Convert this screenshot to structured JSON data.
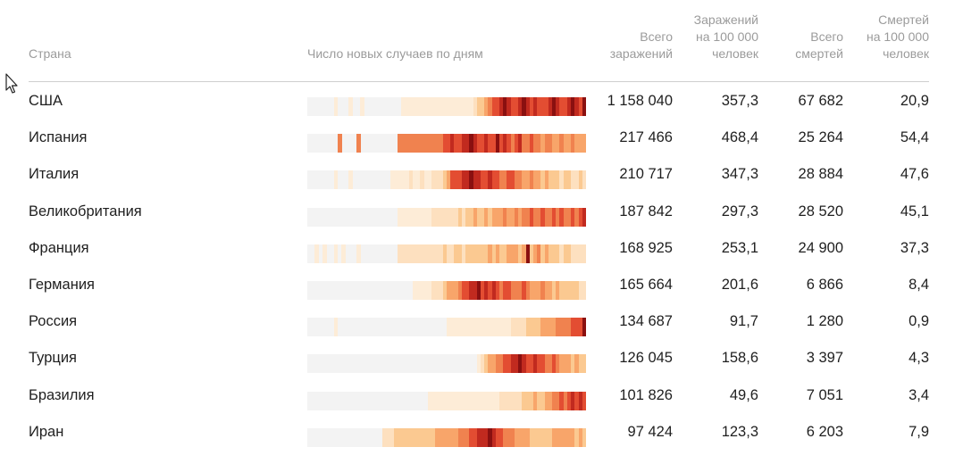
{
  "headers": {
    "country": "Страна",
    "spark": "Число новых случаев по дням",
    "total_cases": "Всего\nзаражений",
    "cases_100k": "Заражений\nна 100 000\nчеловек",
    "total_deaths": "Всего\nсмертей",
    "deaths_100k": "Смертей\nна 100 000\nчеловек"
  },
  "colors": {
    "empty": "#f3f3f3",
    "palette": [
      "#f3f3f3",
      "#fdecd7",
      "#fde0bf",
      "#fbc991",
      "#f8a56a",
      "#f0824f",
      "#e34d32",
      "#c12a1f",
      "#8a1010"
    ]
  },
  "rows": [
    {
      "country": "США",
      "total_cases": "1 158 040",
      "cases_100k": "357,3",
      "total_deaths": "67 682",
      "deaths_100k": "20,9",
      "spark_levels": [
        0,
        0,
        0,
        0,
        0,
        0,
        0,
        1,
        0,
        0,
        0,
        1,
        0,
        0,
        1,
        0,
        0,
        0,
        0,
        0,
        0,
        0,
        0,
        0,
        0,
        1,
        1,
        1,
        1,
        1,
        1,
        1,
        1,
        1,
        1,
        1,
        1,
        1,
        1,
        1,
        1,
        1,
        1,
        1,
        2,
        3,
        3,
        4,
        5,
        6,
        6,
        7,
        8,
        7,
        6,
        6,
        7,
        8,
        7,
        6,
        7,
        6,
        6,
        6,
        7,
        8,
        7,
        6,
        6,
        7,
        8,
        7,
        6,
        8
      ]
    },
    {
      "country": "Испания",
      "total_cases": "217 466",
      "cases_100k": "468,4",
      "total_deaths": "25 264",
      "deaths_100k": "54,4",
      "spark_levels": [
        0,
        0,
        0,
        0,
        0,
        0,
        0,
        0,
        5,
        0,
        0,
        0,
        0,
        5,
        0,
        0,
        0,
        0,
        0,
        0,
        0,
        0,
        0,
        0,
        5,
        5,
        5,
        5,
        5,
        5,
        5,
        5,
        5,
        5,
        5,
        5,
        6,
        6,
        7,
        6,
        6,
        7,
        7,
        8,
        7,
        6,
        6,
        7,
        6,
        6,
        8,
        6,
        7,
        6,
        5,
        6,
        7,
        5,
        5,
        6,
        5,
        5,
        4,
        5,
        5,
        4,
        4,
        5,
        4,
        4,
        5,
        4,
        4,
        4
      ]
    },
    {
      "country": "Италия",
      "total_cases": "210 717",
      "cases_100k": "347,3",
      "total_deaths": "28 884",
      "deaths_100k": "47,6",
      "spark_levels": [
        0,
        0,
        0,
        0,
        0,
        0,
        0,
        1,
        0,
        0,
        0,
        1,
        0,
        0,
        0,
        0,
        0,
        0,
        0,
        0,
        0,
        0,
        1,
        1,
        1,
        1,
        1,
        2,
        1,
        1,
        2,
        1,
        1,
        2,
        2,
        2,
        3,
        4,
        6,
        6,
        6,
        7,
        7,
        8,
        7,
        7,
        6,
        6,
        7,
        6,
        6,
        5,
        5,
        6,
        6,
        5,
        5,
        4,
        4,
        5,
        4,
        4,
        3,
        4,
        3,
        3,
        3,
        2,
        3,
        3,
        2,
        2,
        3,
        2
      ]
    },
    {
      "country": "Великобритания",
      "total_cases": "187 842",
      "cases_100k": "297,3",
      "total_deaths": "28 520",
      "deaths_100k": "45,1",
      "spark_levels": [
        0,
        0,
        0,
        0,
        0,
        0,
        0,
        0,
        0,
        0,
        0,
        0,
        0,
        0,
        0,
        0,
        0,
        0,
        0,
        0,
        0,
        0,
        0,
        0,
        1,
        1,
        1,
        1,
        1,
        1,
        1,
        1,
        1,
        2,
        2,
        2,
        2,
        2,
        2,
        2,
        3,
        2,
        3,
        3,
        4,
        3,
        3,
        4,
        3,
        4,
        4,
        4,
        5,
        4,
        4,
        5,
        4,
        5,
        5,
        6,
        5,
        5,
        6,
        5,
        5,
        6,
        5,
        6,
        5,
        5,
        6,
        5,
        6,
        7
      ]
    },
    {
      "country": "Франция",
      "total_cases": "168 925",
      "cases_100k": "253,1",
      "total_deaths": "24 900",
      "deaths_100k": "37,3",
      "spark_levels": [
        0,
        0,
        1,
        0,
        1,
        0,
        0,
        1,
        0,
        1,
        0,
        0,
        0,
        1,
        0,
        0,
        0,
        0,
        0,
        0,
        0,
        0,
        0,
        0,
        2,
        2,
        2,
        2,
        2,
        2,
        2,
        2,
        2,
        2,
        2,
        2,
        3,
        2,
        2,
        3,
        3,
        2,
        3,
        3,
        3,
        3,
        3,
        3,
        4,
        3,
        4,
        3,
        3,
        4,
        4,
        4,
        3,
        4,
        8,
        3,
        4,
        5,
        3,
        4,
        3,
        3,
        3,
        2,
        3,
        3,
        2,
        2,
        2,
        2
      ]
    },
    {
      "country": "Германия",
      "total_cases": "165 664",
      "cases_100k": "201,6",
      "total_deaths": "6 866",
      "deaths_100k": "8,4",
      "spark_levels": [
        0,
        0,
        0,
        0,
        0,
        0,
        0,
        0,
        0,
        0,
        0,
        0,
        0,
        0,
        0,
        0,
        0,
        0,
        0,
        0,
        0,
        0,
        0,
        0,
        0,
        0,
        0,
        0,
        1,
        1,
        1,
        1,
        1,
        2,
        2,
        2,
        3,
        4,
        4,
        4,
        5,
        6,
        6,
        7,
        7,
        8,
        6,
        7,
        6,
        7,
        6,
        5,
        6,
        6,
        5,
        5,
        5,
        6,
        5,
        4,
        4,
        4,
        5,
        4,
        4,
        3,
        4,
        3,
        3,
        3,
        3,
        3,
        2,
        2
      ]
    },
    {
      "country": "Россия",
      "total_cases": "134 687",
      "cases_100k": "91,7",
      "total_deaths": "1 280",
      "deaths_100k": "0,9",
      "spark_levels": [
        0,
        0,
        0,
        0,
        0,
        0,
        0,
        1,
        0,
        0,
        0,
        0,
        0,
        0,
        0,
        0,
        0,
        0,
        0,
        0,
        0,
        0,
        0,
        0,
        0,
        0,
        0,
        0,
        0,
        0,
        0,
        0,
        0,
        0,
        0,
        0,
        0,
        1,
        1,
        1,
        1,
        1,
        1,
        1,
        1,
        1,
        1,
        1,
        1,
        1,
        1,
        1,
        1,
        1,
        2,
        2,
        2,
        2,
        3,
        3,
        3,
        3,
        4,
        4,
        4,
        4,
        5,
        5,
        5,
        5,
        6,
        6,
        6,
        8
      ]
    },
    {
      "country": "Турция",
      "total_cases": "126 045",
      "cases_100k": "158,6",
      "total_deaths": "3 397",
      "deaths_100k": "4,3",
      "spark_levels": [
        0,
        0,
        0,
        0,
        0,
        0,
        0,
        0,
        0,
        0,
        0,
        0,
        0,
        0,
        0,
        0,
        0,
        0,
        0,
        0,
        0,
        0,
        0,
        0,
        0,
        0,
        0,
        0,
        0,
        0,
        0,
        0,
        0,
        0,
        0,
        0,
        0,
        0,
        0,
        0,
        0,
        0,
        0,
        0,
        0,
        1,
        2,
        3,
        4,
        4,
        5,
        5,
        6,
        6,
        7,
        7,
        8,
        7,
        6,
        6,
        7,
        6,
        6,
        5,
        5,
        6,
        5,
        4,
        4,
        4,
        3,
        4,
        3,
        3
      ]
    },
    {
      "country": "Бразилия",
      "total_cases": "101 826",
      "cases_100k": "49,6",
      "total_deaths": "7 051",
      "deaths_100k": "3,4",
      "spark_levels": [
        0,
        0,
        0,
        0,
        0,
        0,
        0,
        0,
        0,
        0,
        0,
        0,
        0,
        0,
        0,
        0,
        0,
        0,
        0,
        0,
        0,
        0,
        0,
        0,
        0,
        0,
        0,
        0,
        0,
        0,
        0,
        0,
        1,
        1,
        1,
        1,
        1,
        1,
        1,
        1,
        1,
        1,
        1,
        1,
        1,
        1,
        1,
        1,
        1,
        1,
        1,
        2,
        2,
        2,
        2,
        2,
        2,
        3,
        3,
        3,
        4,
        3,
        3,
        4,
        4,
        5,
        5,
        6,
        5,
        6,
        7,
        6,
        7,
        6
      ]
    },
    {
      "country": "Иран",
      "total_cases": "97 424",
      "cases_100k": "123,3",
      "total_deaths": "6 203",
      "deaths_100k": "7,9",
      "spark_levels": [
        0,
        0,
        0,
        0,
        0,
        0,
        0,
        0,
        0,
        0,
        0,
        0,
        0,
        0,
        0,
        0,
        0,
        0,
        0,
        0,
        2,
        2,
        2,
        3,
        3,
        3,
        3,
        3,
        3,
        3,
        3,
        3,
        3,
        3,
        4,
        4,
        4,
        4,
        4,
        4,
        5,
        5,
        5,
        6,
        6,
        7,
        7,
        7,
        8,
        7,
        6,
        6,
        5,
        5,
        5,
        4,
        4,
        4,
        4,
        3,
        3,
        3,
        3,
        3,
        3,
        4,
        4,
        4,
        4,
        4,
        4,
        3,
        4,
        3
      ]
    }
  ]
}
